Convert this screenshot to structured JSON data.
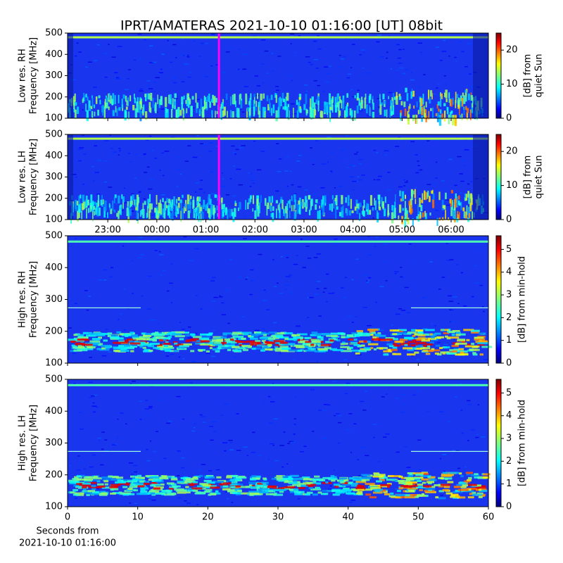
{
  "title": "IPRT/AMATERAS 2021-10-10 01:16:00 [UT]   08bit",
  "chart_data": [
    {
      "type": "heatmap",
      "ylabel": [
        "Low res. RH",
        "Frequency [MHz]"
      ],
      "ylim": [
        100,
        500
      ],
      "yticks": [
        100,
        200,
        300,
        400,
        500
      ],
      "xlim": [
        22.18,
        30.76
      ],
      "xticks": [
        23,
        24,
        25,
        26,
        27,
        28,
        29,
        30
      ],
      "marker_x": 25.2667,
      "marker_color": "#ff00ff",
      "cmap": "jet",
      "colorbar": {
        "label": [
          "[dB] from",
          "quiet Sun"
        ],
        "lim": [
          0,
          25
        ],
        "ticks": [
          0,
          10,
          20
        ]
      }
    },
    {
      "type": "heatmap",
      "ylabel": [
        "Low res. LH",
        "Frequency [MHz]"
      ],
      "ylim": [
        100,
        500
      ],
      "yticks": [
        100,
        200,
        300,
        400,
        500
      ],
      "xlim": [
        22.18,
        30.76
      ],
      "xticks": [
        {
          "value": 23,
          "label": "23:00"
        },
        {
          "value": 24,
          "label": "00:00"
        },
        {
          "value": 25,
          "label": "01:00"
        },
        {
          "value": 26,
          "label": "02:00"
        },
        {
          "value": 27,
          "label": "03:00"
        },
        {
          "value": 28,
          "label": "04:00"
        },
        {
          "value": 29,
          "label": "05:00"
        },
        {
          "value": 30,
          "label": "06:00"
        }
      ],
      "marker_x": 25.2667,
      "marker_color": "#ff00ff",
      "cmap": "jet",
      "colorbar": {
        "label": [
          "[dB] from",
          "quiet Sun"
        ],
        "lim": [
          0,
          25
        ],
        "ticks": [
          0,
          10,
          20
        ]
      }
    },
    {
      "type": "heatmap",
      "ylabel": [
        "High res. RH",
        "Frequency [MHz]"
      ],
      "ylim": [
        100,
        500
      ],
      "yticks": [
        100,
        200,
        300,
        400,
        500
      ],
      "xlim": [
        0,
        60
      ],
      "xticks": [
        0,
        10,
        20,
        30,
        40,
        50,
        60
      ],
      "cmap": "jet",
      "colorbar": {
        "label": [
          "[dB] from min-hold"
        ],
        "lim": [
          0,
          5.6
        ],
        "ticks": [
          0,
          1,
          2,
          3,
          4,
          5
        ]
      }
    },
    {
      "type": "heatmap",
      "ylabel": [
        "High res. LH",
        "Frequency [MHz]"
      ],
      "ylim": [
        100,
        500
      ],
      "yticks": [
        100,
        200,
        300,
        400,
        500
      ],
      "xlim": [
        0,
        60
      ],
      "xticks": [
        0,
        10,
        20,
        30,
        40,
        50,
        60
      ],
      "cmap": "jet",
      "xlabel": [
        "Seconds from",
        "2021-10-10 01:16:00"
      ],
      "colorbar": {
        "label": [
          "[dB] from min-hold"
        ],
        "lim": [
          0,
          5.6
        ],
        "ticks": [
          0,
          1,
          2,
          3,
          4,
          5
        ]
      }
    }
  ]
}
